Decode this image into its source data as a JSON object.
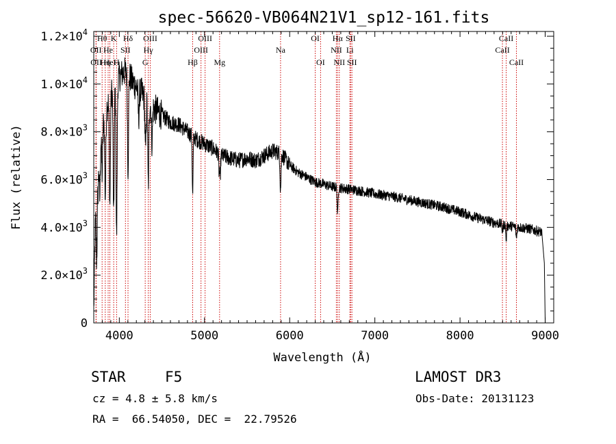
{
  "chart_data": {
    "type": "line",
    "title": "spec-56620-VB064N21V1_sp12-161.fits",
    "xlabel": "Wavelength (Å)",
    "ylabel": "Flux (relative)",
    "xlim": [
      3700,
      9100
    ],
    "ylim": [
      0,
      12200
    ],
    "x_ticks": [
      4000,
      5000,
      6000,
      7000,
      8000,
      9000
    ],
    "x_tick_labels": [
      "4000",
      "5000",
      "6000",
      "7000",
      "8000",
      "9000"
    ],
    "y_ticks": [
      0,
      2000,
      4000,
      6000,
      8000,
      10000,
      12000
    ],
    "y_tick_labels": [
      {
        "mant": "0",
        "exp": ""
      },
      {
        "mant": "2.0×10",
        "exp": "3"
      },
      {
        "mant": "4.0×10",
        "exp": "3"
      },
      {
        "mant": "6.0×10",
        "exp": "3"
      },
      {
        "mant": "8.0×10",
        "exp": "3"
      },
      {
        "mant": "1.0×10",
        "exp": "4"
      },
      {
        "mant": "1.2×10",
        "exp": "4"
      }
    ],
    "spectrum_envelope": {
      "x": [
        3700,
        3730,
        3760,
        3800,
        3850,
        3900,
        3950,
        4000,
        4050,
        4100,
        4150,
        4200,
        4250,
        4300,
        4400,
        4500,
        4600,
        4700,
        4800,
        4900,
        5000,
        5100,
        5200,
        5300,
        5400,
        5500,
        5600,
        5700,
        5800,
        5900,
        6000,
        6100,
        6200,
        6300,
        6400,
        6500,
        6600,
        6700,
        6800,
        7000,
        7200,
        7400,
        7600,
        7800,
        8000,
        8200,
        8400,
        8600,
        8800,
        8960,
        8990,
        9000
      ],
      "y": [
        500,
        6500,
        7500,
        8300,
        9000,
        9600,
        10000,
        10300,
        10500,
        10500,
        10100,
        9900,
        9700,
        9400,
        9000,
        8700,
        8400,
        8300,
        8000,
        7700,
        7500,
        7300,
        7000,
        6900,
        6800,
        6900,
        6800,
        7000,
        7200,
        7100,
        6600,
        6300,
        6100,
        5900,
        5800,
        5700,
        5650,
        5600,
        5550,
        5400,
        5300,
        5150,
        5000,
        4850,
        4650,
        4400,
        4200,
        4050,
        3950,
        3800,
        2500,
        0
      ]
    },
    "absorption_lines": [
      {
        "x": 3734,
        "depth": 4000
      },
      {
        "x": 3750,
        "depth": 1500
      },
      {
        "x": 3770,
        "depth": 2500
      },
      {
        "x": 3798,
        "depth": 2000
      },
      {
        "x": 3835,
        "depth": 3500
      },
      {
        "x": 3889,
        "depth": 4500
      },
      {
        "x": 3934,
        "depth": 5500
      },
      {
        "x": 3968,
        "depth": 6500
      },
      {
        "x": 4102,
        "depth": 4000
      },
      {
        "x": 4227,
        "depth": 1200
      },
      {
        "x": 4307,
        "depth": 2200
      },
      {
        "x": 4340,
        "depth": 3500
      },
      {
        "x": 4383,
        "depth": 1500
      },
      {
        "x": 4861,
        "depth": 2500
      },
      {
        "x": 5172,
        "depth": 800
      },
      {
        "x": 5184,
        "depth": 900
      },
      {
        "x": 5890,
        "depth": 1000
      },
      {
        "x": 5896,
        "depth": 800
      },
      {
        "x": 6563,
        "depth": 1200
      },
      {
        "x": 8498,
        "depth": 300
      },
      {
        "x": 8542,
        "depth": 600
      },
      {
        "x": 8662,
        "depth": 500
      }
    ],
    "line_markers": [
      {
        "x": 3726,
        "label": "OII",
        "row": 1
      },
      {
        "x": 3729,
        "label": "OII",
        "row": 2
      },
      {
        "x": 3798,
        "label": "Hθ",
        "row": 0
      },
      {
        "x": 3835,
        "label": "Hη",
        "row": 2
      },
      {
        "x": 3869,
        "label": "He",
        "row": 1
      },
      {
        "x": 3889,
        "label": "HeI",
        "row": 2
      },
      {
        "x": 3934,
        "label": "K",
        "row": 0
      },
      {
        "x": 3968,
        "label": "H",
        "row": 2
      },
      {
        "x": 4072,
        "label": "SII",
        "row": 1
      },
      {
        "x": 4102,
        "label": "Hδ",
        "row": 0
      },
      {
        "x": 4304,
        "label": "G",
        "row": 2
      },
      {
        "x": 4340,
        "label": "Hγ",
        "row": 1
      },
      {
        "x": 4363,
        "label": "OIII",
        "row": 0
      },
      {
        "x": 4861,
        "label": "Hβ",
        "row": 2
      },
      {
        "x": 4959,
        "label": "OIII",
        "row": 1
      },
      {
        "x": 5007,
        "label": "OIII",
        "row": 0
      },
      {
        "x": 5177,
        "label": "Mg",
        "row": 2
      },
      {
        "x": 5893,
        "label": "Na",
        "row": 1
      },
      {
        "x": 6300,
        "label": "OI",
        "row": 0
      },
      {
        "x": 6363,
        "label": "OI",
        "row": 2
      },
      {
        "x": 6548,
        "label": "NII",
        "row": 1
      },
      {
        "x": 6563,
        "label": "Hα",
        "row": 0
      },
      {
        "x": 6583,
        "label": "NII",
        "row": 2
      },
      {
        "x": 6707,
        "label": "Li",
        "row": 1
      },
      {
        "x": 6716,
        "label": "SII",
        "row": 0
      },
      {
        "x": 6731,
        "label": "SII",
        "row": 2
      },
      {
        "x": 8498,
        "label": "CaII",
        "row": 1
      },
      {
        "x": 8542,
        "label": "CaII",
        "row": 0
      },
      {
        "x": 8662,
        "label": "CaII",
        "row": 2
      }
    ]
  },
  "footer": {
    "object_class": "STAR",
    "subclass": "F5",
    "survey": "LAMOST DR3",
    "redshift": "cz = 4.8 ± 5.8 km/s",
    "obs_date": "Obs-Date: 20131123",
    "coords": "RA =  66.54050, DEC =  22.79526"
  },
  "colors": {
    "axes": "#000000",
    "spectrum": "#000000",
    "marker_line": "#cc0000"
  }
}
